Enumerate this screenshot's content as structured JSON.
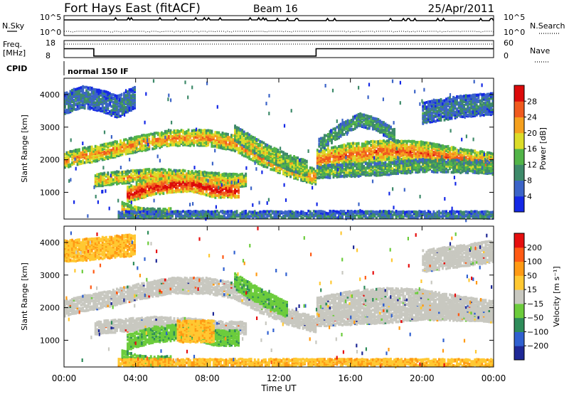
{
  "header": {
    "station": "Fort Hays East (fitACF)",
    "beam": "Beam 16",
    "date": "25/Apr/2011"
  },
  "top_panels": {
    "nsky_label": "N.Sky",
    "nsearch_label": "N.Search",
    "noise_ticks": [
      "10^5",
      "10^0"
    ],
    "freq_label_1": "Freq.",
    "freq_label_2": "[MHz]",
    "freq_ticks_left": [
      "18",
      "8"
    ],
    "freq_ticks_right": [
      "60",
      "0"
    ],
    "nave_label": "Nave",
    "cpid_label": "CPID",
    "cpid_value": "normal 150 IF",
    "frequency_mhz": [
      {
        "from": "00:00",
        "to": "01:40",
        "value": 13.2
      },
      {
        "from": "01:40",
        "to": "14:05",
        "value": 8.9
      },
      {
        "from": "14:05",
        "to": "24:00",
        "value": 13.2
      }
    ]
  },
  "x_axis": {
    "label": "Time UT",
    "ticks": [
      "00:00",
      "04:00",
      "08:00",
      "12:00",
      "16:00",
      "20:00",
      "00:00"
    ]
  },
  "chart_data": [
    {
      "type": "heatmap",
      "title": "Power",
      "ylabel": "Slant Range [km]",
      "xlabel": "Time UT",
      "yticks": [
        "1000",
        "2000",
        "3000",
        "4000"
      ],
      "ylim": [
        180,
        4500
      ],
      "colorbar": {
        "label": "Power [dB]",
        "ticks": [
          "4",
          "8",
          "12",
          "16",
          "20",
          "24",
          "28"
        ],
        "range": [
          0,
          30
        ],
        "colors": [
          "#1428e6",
          "#3c64c8",
          "#3e8a6a",
          "#52b448",
          "#dcdc28",
          "#f5a01e",
          "#f05a1e",
          "#dc0a0a"
        ]
      },
      "bands": [
        {
          "points": [
            [
              0,
              1950
            ],
            [
              1,
              2100
            ],
            [
              1.6,
              2150
            ],
            [
              2.5,
              2250
            ],
            [
              4,
              2450
            ],
            [
              6,
              2650
            ],
            [
              8,
              2650
            ],
            [
              9.5,
              2500
            ],
            [
              11,
              2050
            ],
            [
              12.5,
              1700
            ],
            [
              14.05,
              1450
            ]
          ],
          "width": 240,
          "level": 0.65
        },
        {
          "points": [
            [
              1.7,
              1350
            ],
            [
              3,
              1420
            ],
            [
              5,
              1500
            ],
            [
              7,
              1450
            ],
            [
              9,
              1350
            ],
            [
              10.2,
              1350
            ]
          ],
          "width": 200,
          "level": 0.6
        },
        {
          "points": [
            [
              3.5,
              900
            ],
            [
              5,
              1150
            ],
            [
              7,
              1250
            ],
            [
              8.5,
              1050
            ],
            [
              9.8,
              1050
            ]
          ],
          "width": 230,
          "level": 0.85
        },
        {
          "points": [
            [
              3.2,
              500
            ],
            [
              4,
              330
            ],
            [
              5,
              280
            ],
            [
              6,
              300
            ]
          ],
          "width": 160,
          "level": 0.6
        },
        {
          "points": [
            [
              14.1,
              1950
            ],
            [
              16,
              2150
            ],
            [
              18,
              2250
            ],
            [
              20,
              2200
            ],
            [
              22,
              2000
            ],
            [
              24,
              1850
            ]
          ],
          "width": 320,
          "level": 0.7
        },
        {
          "points": [
            [
              14.1,
              1600
            ],
            [
              16,
              1650
            ],
            [
              18,
              1700
            ],
            [
              20,
              1800
            ],
            [
              24,
              1750
            ]
          ],
          "width": 160,
          "level": 0.4
        },
        {
          "points": [
            [
              14.2,
              2400
            ],
            [
              15.5,
              2900
            ],
            [
              16.5,
              3200
            ],
            [
              17.5,
              3050
            ],
            [
              18.5,
              2700
            ]
          ],
          "width": 160,
          "level": 0.35
        },
        {
          "points": [
            [
              0,
              3700
            ],
            [
              1,
              3900
            ],
            [
              2,
              3800
            ],
            [
              3,
              3600
            ],
            [
              4,
              3900
            ]
          ],
          "width": 300,
          "level": 0.25
        },
        {
          "points": [
            [
              20,
              3400
            ],
            [
              22,
              3600
            ],
            [
              24,
              3700
            ]
          ],
          "width": 300,
          "level": 0.25
        },
        {
          "points": [
            [
              9.5,
              2800
            ],
            [
              11,
              2300
            ],
            [
              12.5,
              1900
            ],
            [
              13.6,
              1700
            ]
          ],
          "width": 220,
          "level": 0.5
        },
        {
          "points": [
            [
              3,
              250
            ],
            [
              10,
              250
            ],
            [
              17,
              250
            ],
            [
              24,
              240
            ]
          ],
          "width": 120,
          "level": 0.25
        }
      ]
    },
    {
      "type": "heatmap",
      "title": "Velocity",
      "ylabel": "Slant Range [km]",
      "xlabel": "Time UT",
      "yticks": [
        "1000",
        "2000",
        "3000",
        "4000"
      ],
      "ylim": [
        180,
        4500
      ],
      "colorbar": {
        "label": "Velocity [m s⁻¹]",
        "ticks": [
          "200",
          "100",
          "50",
          "15",
          "−15",
          "−50",
          "−100",
          "−200"
        ],
        "range": [
          -250,
          250
        ],
        "colors": [
          "#1e2896",
          "#3060d0",
          "#2e8c5a",
          "#6ccc3c",
          "#c8c8c0",
          "#ffc832",
          "#ff9a14",
          "#ff5a14",
          "#e60f0f"
        ]
      },
      "ground_scatter_color": "#c8c8c0",
      "bands": [
        {
          "points": [
            [
              0,
              1950
            ],
            [
              1,
              2100
            ],
            [
              1.6,
              2150
            ],
            [
              2.5,
              2250
            ],
            [
              4,
              2450
            ],
            [
              6,
              2650
            ],
            [
              8,
              2650
            ],
            [
              9.5,
              2500
            ],
            [
              11,
              2050
            ],
            [
              12.5,
              1700
            ],
            [
              14.05,
              1450
            ]
          ],
          "width": 240,
          "kind": "ground"
        },
        {
          "points": [
            [
              1.7,
              1350
            ],
            [
              3,
              1420
            ],
            [
              5,
              1500
            ],
            [
              7,
              1450
            ],
            [
              9,
              1350
            ],
            [
              10.2,
              1350
            ]
          ],
          "width": 200,
          "kind": "ground"
        },
        {
          "points": [
            [
              3.5,
              900
            ],
            [
              5,
              1150
            ],
            [
              7,
              1250
            ],
            [
              8.5,
              1050
            ],
            [
              9.8,
              1050
            ]
          ],
          "width": 230,
          "kind": "green"
        },
        {
          "points": [
            [
              6.3,
              1250
            ],
            [
              8.4,
              1250
            ]
          ],
          "width": 300,
          "kind": "orange"
        },
        {
          "points": [
            [
              3.2,
              500
            ],
            [
              4,
              330
            ],
            [
              5,
              280
            ],
            [
              6,
              300
            ]
          ],
          "width": 160,
          "kind": "green"
        },
        {
          "points": [
            [
              14.1,
              1950
            ],
            [
              16,
              2150
            ],
            [
              18,
              2250
            ],
            [
              20,
              2200
            ],
            [
              22,
              2000
            ],
            [
              24,
              1850
            ]
          ],
          "width": 320,
          "kind": "ground"
        },
        {
          "points": [
            [
              14.1,
              1600
            ],
            [
              16,
              1650
            ],
            [
              18,
              1700
            ],
            [
              20,
              1800
            ],
            [
              24,
              1750
            ]
          ],
          "width": 160,
          "kind": "ground"
        },
        {
          "points": [
            [
              0,
              3700
            ],
            [
              2,
              3800
            ],
            [
              4,
              3900
            ]
          ],
          "width": 300,
          "kind": "orange"
        },
        {
          "points": [
            [
              20,
              3400
            ],
            [
              24,
              3700
            ]
          ],
          "width": 300,
          "kind": "ground"
        },
        {
          "points": [
            [
              9.5,
              2800
            ],
            [
              11,
              2300
            ],
            [
              12.5,
              1900
            ]
          ],
          "width": 220,
          "kind": "green"
        },
        {
          "points": [
            [
              3,
              250
            ],
            [
              10,
              250
            ],
            [
              17,
              250
            ],
            [
              24,
              240
            ]
          ],
          "width": 120,
          "kind": "orange"
        }
      ]
    }
  ]
}
